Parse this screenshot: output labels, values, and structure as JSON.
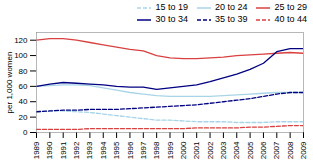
{
  "chart_data": {
    "type": "line",
    "ylabel": "per 1,000 women",
    "x": [
      1989,
      1990,
      1991,
      1992,
      1993,
      1994,
      1995,
      1996,
      1997,
      1998,
      1999,
      2000,
      2001,
      2002,
      2003,
      2004,
      2005,
      2006,
      2007,
      2008,
      2009
    ],
    "series": [
      {
        "name": "15 to 19",
        "color": "#a8d4e8",
        "line_style": "dashed",
        "values": [
          27,
          28,
          28,
          27,
          26,
          24,
          22,
          20,
          18,
          16,
          16,
          15,
          14,
          14,
          14,
          13,
          13,
          13,
          14,
          14,
          14
        ]
      },
      {
        "name": "20 to 24",
        "color": "#a8d4e8",
        "line_style": "solid",
        "values": [
          60,
          61,
          62,
          62,
          61,
          58,
          55,
          52,
          50,
          48,
          47,
          47,
          47,
          47,
          48,
          49,
          50,
          51,
          52,
          52,
          52
        ]
      },
      {
        "name": "25 to 29",
        "color": "#d94040",
        "line_style": "solid",
        "values": [
          120,
          122,
          122,
          120,
          117,
          114,
          111,
          108,
          106,
          100,
          97,
          96,
          96,
          97,
          98,
          100,
          101,
          102,
          103,
          104,
          103
        ]
      },
      {
        "name": "30 to 34",
        "color": "#000080",
        "line_style": "solid",
        "values": [
          60,
          63,
          65,
          64,
          63,
          62,
          60,
          59,
          59,
          56,
          58,
          60,
          62,
          66,
          71,
          76,
          82,
          90,
          105,
          109,
          109
        ]
      },
      {
        "name": "35 to 39",
        "color": "#000080",
        "line_style": "dashed",
        "values": [
          27,
          28,
          29,
          29,
          30,
          30,
          30,
          31,
          32,
          33,
          34,
          35,
          36,
          38,
          40,
          42,
          44,
          47,
          50,
          52,
          52
        ]
      },
      {
        "name": "40 to 44",
        "color": "#d94040",
        "line_style": "dashed",
        "values": [
          4,
          4,
          4,
          4,
          5,
          5,
          5,
          5,
          5,
          5,
          5,
          5,
          6,
          6,
          6,
          6,
          7,
          7,
          8,
          9,
          9
        ]
      }
    ],
    "xlim": [
      1989,
      2009
    ],
    "xticks": [
      1989,
      1990,
      1991,
      1992,
      1993,
      1994,
      1995,
      1996,
      1997,
      1998,
      1999,
      2000,
      2001,
      2002,
      2003,
      2004,
      2005,
      2006,
      2007,
      2008,
      2009
    ],
    "ylim": [
      0,
      130
    ],
    "yticks": [
      0,
      20,
      40,
      60,
      80,
      100,
      120
    ],
    "legend": "upper right",
    "grid": false
  }
}
